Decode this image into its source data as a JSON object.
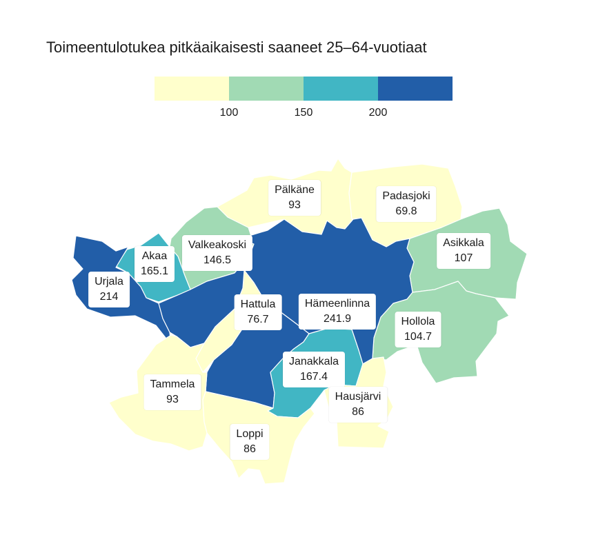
{
  "title": "Toimeentulotukea pitkäaikaisesti saaneet 25–64-vuotiaat",
  "colors": {
    "c1": "#ffffcc",
    "c2": "#a1dab4",
    "c3": "#41b6c4",
    "c4": "#225ea8"
  },
  "legend": {
    "ticks": [
      "100",
      "150",
      "200"
    ]
  },
  "municipalities": {
    "palkane": {
      "name": "Pälkäne",
      "value": "93"
    },
    "padasjoki": {
      "name": "Padasjoki",
      "value": "69.8"
    },
    "asikkala": {
      "name": "Asikkala",
      "value": "107"
    },
    "valkeakoski": {
      "name": "Valkeakoski",
      "value": "146.5"
    },
    "akaa": {
      "name": "Akaa",
      "value": "165.1"
    },
    "urjala": {
      "name": "Urjala",
      "value": "214"
    },
    "hattula": {
      "name": "Hattula",
      "value": "76.7"
    },
    "hameenlinna": {
      "name": "Hämeenlinna",
      "value": "241.9"
    },
    "hollola": {
      "name": "Hollola",
      "value": "104.7"
    },
    "janakkala": {
      "name": "Janakkala",
      "value": "167.4"
    },
    "tammela": {
      "name": "Tammela",
      "value": "93"
    },
    "hausjarvi": {
      "name": "Hausjärvi",
      "value": "86"
    },
    "loppi": {
      "name": "Loppi",
      "value": "86"
    }
  }
}
